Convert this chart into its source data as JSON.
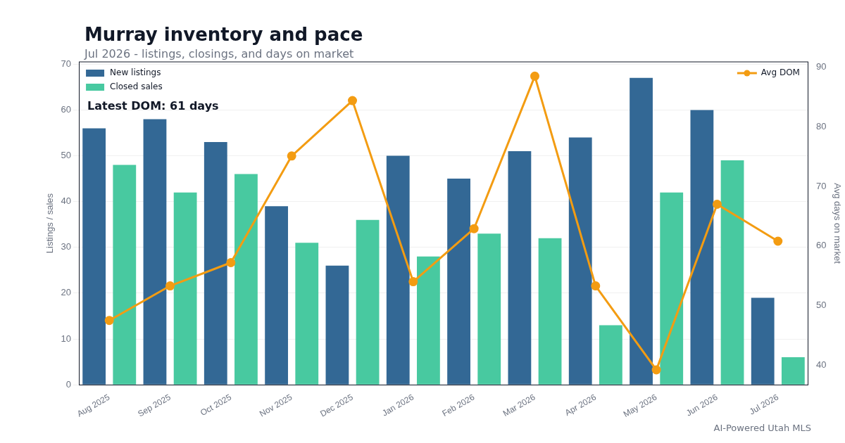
{
  "chart_data": {
    "type": "bar",
    "title": "Murray inventory and pace",
    "subtitle": "Jul 2026 - listings, closings, and days on market",
    "ylabel": "Listings / sales",
    "y2label": "Avg days on market",
    "categories": [
      "Aug 2025",
      "Sep 2025",
      "Oct 2025",
      "Nov 2025",
      "Dec 2025",
      "Jan 2026",
      "Feb 2026",
      "Mar 2026",
      "Apr 2026",
      "May 2026",
      "Jun 2026",
      "Jul 2026"
    ],
    "series": [
      {
        "name": "New listings",
        "color": "#336895",
        "values": [
          56,
          58,
          53,
          39,
          26,
          50,
          45,
          51,
          54,
          67,
          60,
          19
        ]
      },
      {
        "name": "Closed sales",
        "color": "#48c9a0",
        "values": [
          48,
          42,
          46,
          31,
          36,
          28,
          33,
          32,
          13,
          42,
          49,
          6
        ]
      },
      {
        "name": "Avg DOM",
        "type": "line",
        "axis": "y2",
        "color": "#f39c12",
        "values": [
          47.5,
          53.3,
          57.2,
          75.1,
          84.4,
          54.0,
          62.9,
          88.5,
          53.3,
          39.2,
          67.0,
          60.8
        ]
      }
    ],
    "ylim": [
      0,
      70.5
    ],
    "yticks": [
      0,
      10,
      20,
      30,
      40,
      50,
      60,
      70
    ],
    "y2lim": [
      36.7,
      90.9
    ],
    "y2ticks": [
      40,
      50,
      60,
      70,
      80,
      90
    ],
    "grid": "y",
    "legend": "top left",
    "marker": "circle",
    "line_style": "solid",
    "annotations": [
      "Latest DOM: 61 days",
      "AI-Powered Utah MLS"
    ]
  }
}
